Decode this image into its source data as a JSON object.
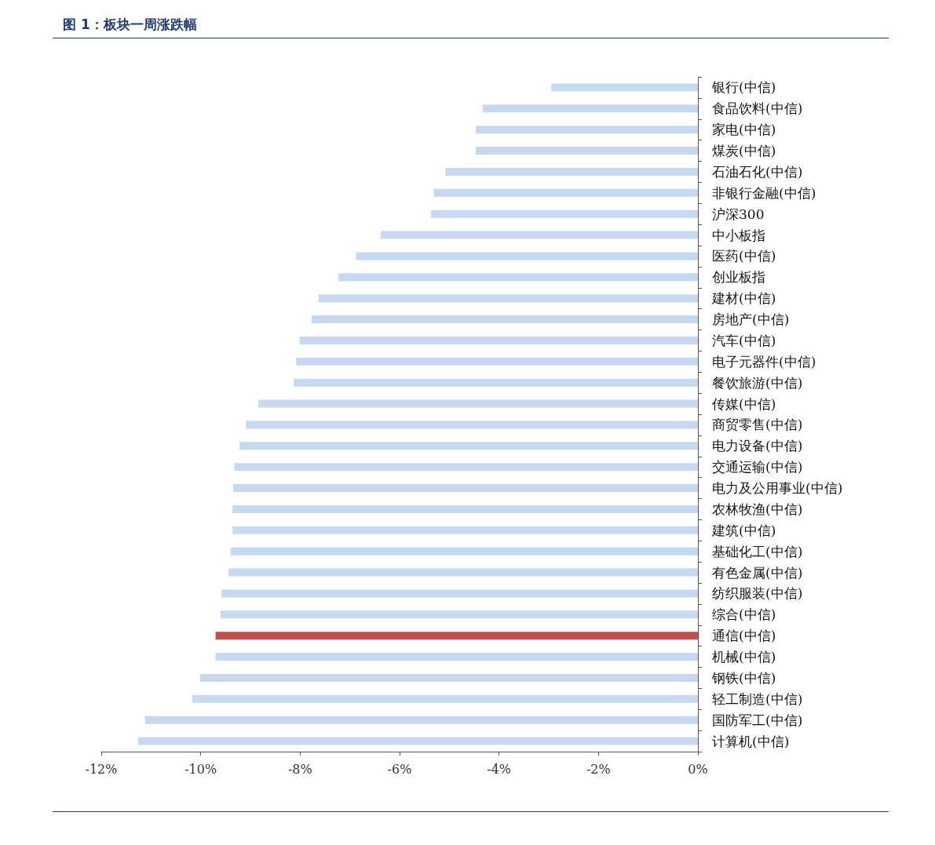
{
  "chart_data": {
    "type": "bar",
    "orientation": "horizontal",
    "title": "图 1：板块一周涨跌幅",
    "categories": [
      "银行(中信)",
      "食品饮料(中信)",
      "家电(中信)",
      "煤炭(中信)",
      "石油石化(中信)",
      "非银行金融(中信)",
      "沪深300",
      "中小板指",
      "医药(中信)",
      "创业板指",
      "建材(中信)",
      "房地产(中信)",
      "汽车(中信)",
      "电子元器件(中信)",
      "餐饮旅游(中信)",
      "传媒(中信)",
      "商贸零售(中信)",
      "电力设备(中信)",
      "交通运输(中信)",
      "电力及公用事业(中信)",
      "农林牧渔(中信)",
      "建筑(中信)",
      "基础化工(中信)",
      "有色金属(中信)",
      "纺织服装(中信)",
      "综合(中信)",
      "通信(中信)",
      "机械(中信)",
      "钢铁(中信)",
      "轻工制造(中信)",
      "国防军工(中信)",
      "计算机(中信)"
    ],
    "values": [
      -2.95,
      -4.33,
      -4.47,
      -4.47,
      -5.08,
      -5.31,
      -5.37,
      -6.38,
      -6.88,
      -7.23,
      -7.63,
      -7.77,
      -8.01,
      -8.08,
      -8.13,
      -8.84,
      -9.09,
      -9.22,
      -9.32,
      -9.35,
      -9.36,
      -9.36,
      -9.4,
      -9.44,
      -9.58,
      -9.6,
      -9.7,
      -9.7,
      -10.01,
      -10.17,
      -11.12,
      -11.26
    ],
    "colors": [
      "#c6d9f1",
      "#c6d9f1",
      "#c6d9f1",
      "#c6d9f1",
      "#c6d9f1",
      "#c6d9f1",
      "#c6d9f1",
      "#c6d9f1",
      "#c6d9f1",
      "#c6d9f1",
      "#c6d9f1",
      "#c6d9f1",
      "#c6d9f1",
      "#c6d9f1",
      "#c6d9f1",
      "#c6d9f1",
      "#c6d9f1",
      "#c6d9f1",
      "#c6d9f1",
      "#c6d9f1",
      "#c6d9f1",
      "#c6d9f1",
      "#c6d9f1",
      "#c6d9f1",
      "#c6d9f1",
      "#c6d9f1",
      "#c0504d",
      "#c6d9f1",
      "#c6d9f1",
      "#c6d9f1",
      "#c6d9f1",
      "#c6d9f1"
    ],
    "xlim": [
      -12,
      0
    ],
    "xticks": [
      {
        "value": -12,
        "label": "-12%"
      },
      {
        "value": -10,
        "label": "-10%"
      },
      {
        "value": -8,
        "label": "-8%"
      },
      {
        "value": -6,
        "label": "-6%"
      },
      {
        "value": -4,
        "label": "-4%"
      },
      {
        "value": -2,
        "label": "-2%"
      },
      {
        "value": 0,
        "label": "0%"
      }
    ],
    "grid": false
  }
}
